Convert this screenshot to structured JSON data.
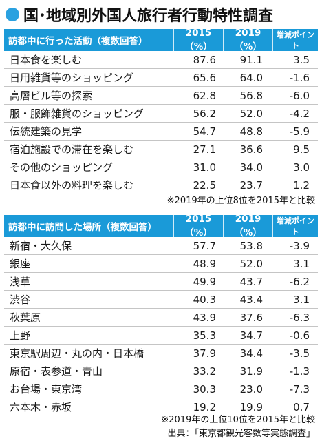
{
  "title": "国･地域別外国人旅行者行動特性調査",
  "table1": {
    "headers": [
      "訪都中に行った活動（複数回答）",
      "2015（%）",
      "2019（%）",
      "増減ポイント"
    ],
    "rows": [
      [
        "日本食を楽しむ",
        "87.6",
        "91.1",
        "3.5"
      ],
      [
        "日用雑貨等のショッピング",
        "65.6",
        "64.0",
        "-1.6"
      ],
      [
        "高層ビル等の探索",
        "62.8",
        "56.8",
        "-6.0"
      ],
      [
        "服・服飾雑貨のショッピング",
        "56.2",
        "52.0",
        "-4.2"
      ],
      [
        "伝統建築の見学",
        "54.7",
        "48.8",
        "-5.9"
      ],
      [
        "宿泊施設での滞在を楽しむ",
        "27.1",
        "36.6",
        "9.5"
      ],
      [
        "その他のショッピング",
        "31.0",
        "34.0",
        "3.0"
      ],
      [
        "日本食以外の料理を楽しむ",
        "22.5",
        "23.7",
        "1.2"
      ]
    ],
    "note": "※2019年の上位8位を2015年と比較"
  },
  "table2": {
    "headers": [
      "訪都中に訪問した場所（複数回答）",
      "2015（%）",
      "2019（%）",
      "増減ポイント"
    ],
    "rows": [
      [
        "新宿・大久保",
        "57.7",
        "53.8",
        "-3.9"
      ],
      [
        "銀座",
        "48.9",
        "52.0",
        "3.1"
      ],
      [
        "浅草",
        "49.9",
        "43.7",
        "-6.2"
      ],
      [
        "渋谷",
        "40.3",
        "43.4",
        "3.1"
      ],
      [
        "秋葉原",
        "43.9",
        "37.6",
        "-6.3"
      ],
      [
        "上野",
        "35.3",
        "34.7",
        "-0.6"
      ],
      [
        "東京駅周辺・丸の内・日本橋",
        "37.9",
        "34.4",
        "-3.5"
      ],
      [
        "原宿・表参道・青山",
        "33.2",
        "31.9",
        "-1.3"
      ],
      [
        "お台場・東京湾",
        "30.3",
        "23.0",
        "-7.3"
      ],
      [
        "六本木・赤坂",
        "19.2",
        "19.9",
        "0.7"
      ]
    ],
    "note": "※2019年の上位10位を2015年と比較"
  },
  "source": "出典：「東京都観光客数等実態調査」",
  "colors": {
    "accent": "#1a9ad8",
    "dot": "#2aa1e0"
  }
}
